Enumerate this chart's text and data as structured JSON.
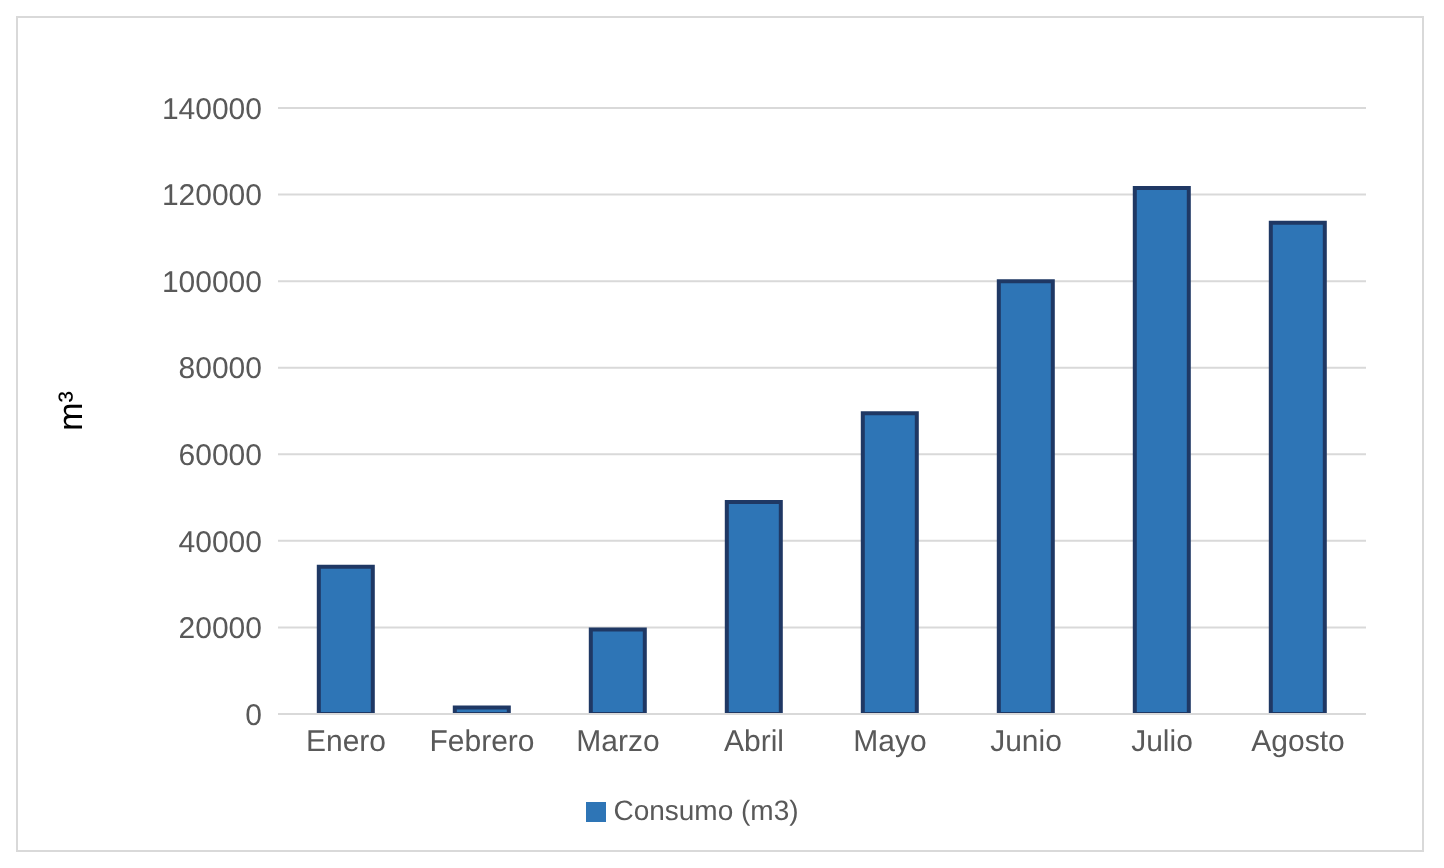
{
  "chart_data": {
    "type": "bar",
    "ylabel": "m³",
    "categories": [
      "Enero",
      "Febrero",
      "Marzo",
      "Abril",
      "Mayo",
      "Junio",
      "Julio",
      "Agosto"
    ],
    "series": [
      {
        "name": "Consumo (m3)",
        "color": "#2e75b6",
        "values": [
          34000,
          1500,
          19500,
          49000,
          69500,
          100000,
          121500,
          113500
        ]
      }
    ],
    "ylim": [
      0,
      140000
    ],
    "yticks": [
      0,
      20000,
      40000,
      60000,
      80000,
      100000,
      120000,
      140000
    ],
    "grid": "y",
    "legend": "bottom"
  }
}
